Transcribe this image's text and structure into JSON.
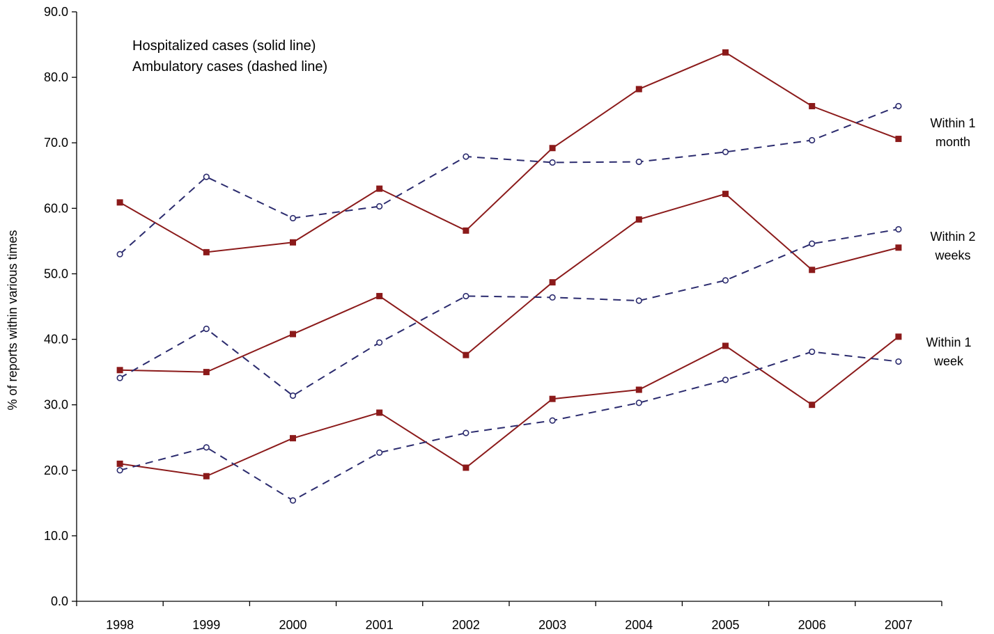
{
  "chart_data": {
    "type": "line",
    "ylabel": "% of reports within various times",
    "xlabel": "",
    "x": [
      "1998",
      "1999",
      "2000",
      "2001",
      "2002",
      "2003",
      "2004",
      "2005",
      "2006",
      "2007"
    ],
    "ylim": [
      0,
      90
    ],
    "yticks": [
      "0.0",
      "10.0",
      "20.0",
      "30.0",
      "40.0",
      "50.0",
      "60.0",
      "70.0",
      "80.0",
      "90.0"
    ],
    "grid": false,
    "legend_lines": [
      "Hospitalized cases (solid line)",
      "Ambulatory cases (dashed line)"
    ],
    "legend_placement": "top-left",
    "colors": {
      "hospitalized": "#8B1A1A",
      "ambulatory": "#2B2B6E"
    },
    "series": [
      {
        "group": "month",
        "style": "solid",
        "marker": "square",
        "values": [
          60.9,
          53.3,
          54.8,
          63.0,
          56.6,
          69.2,
          78.2,
          83.8,
          75.6,
          70.6
        ]
      },
      {
        "group": "month",
        "style": "dashed",
        "marker": "circle",
        "values": [
          53.0,
          64.8,
          58.5,
          60.3,
          67.9,
          67.0,
          67.1,
          68.6,
          70.4,
          75.6
        ]
      },
      {
        "group": "2weeks",
        "style": "solid",
        "marker": "square",
        "values": [
          35.3,
          35.0,
          40.8,
          46.6,
          37.6,
          48.7,
          58.3,
          62.2,
          50.6,
          54.0
        ]
      },
      {
        "group": "2weeks",
        "style": "dashed",
        "marker": "circle",
        "values": [
          34.1,
          41.6,
          31.4,
          39.5,
          46.6,
          46.4,
          45.9,
          49.0,
          54.6,
          56.8
        ]
      },
      {
        "group": "1week",
        "style": "solid",
        "marker": "square",
        "values": [
          21.0,
          19.1,
          24.9,
          28.8,
          20.4,
          30.9,
          32.3,
          39.0,
          30.0,
          40.4
        ]
      },
      {
        "group": "1week",
        "style": "dashed",
        "marker": "circle",
        "values": [
          20.0,
          23.5,
          15.4,
          22.7,
          25.7,
          27.6,
          30.3,
          33.8,
          38.1,
          36.6
        ]
      }
    ],
    "annotations": [
      {
        "lines": [
          "Within 1",
          "month"
        ]
      },
      {
        "lines": [
          "Within 2",
          "weeks"
        ]
      },
      {
        "lines": [
          "Within 1",
          "week"
        ]
      }
    ]
  }
}
